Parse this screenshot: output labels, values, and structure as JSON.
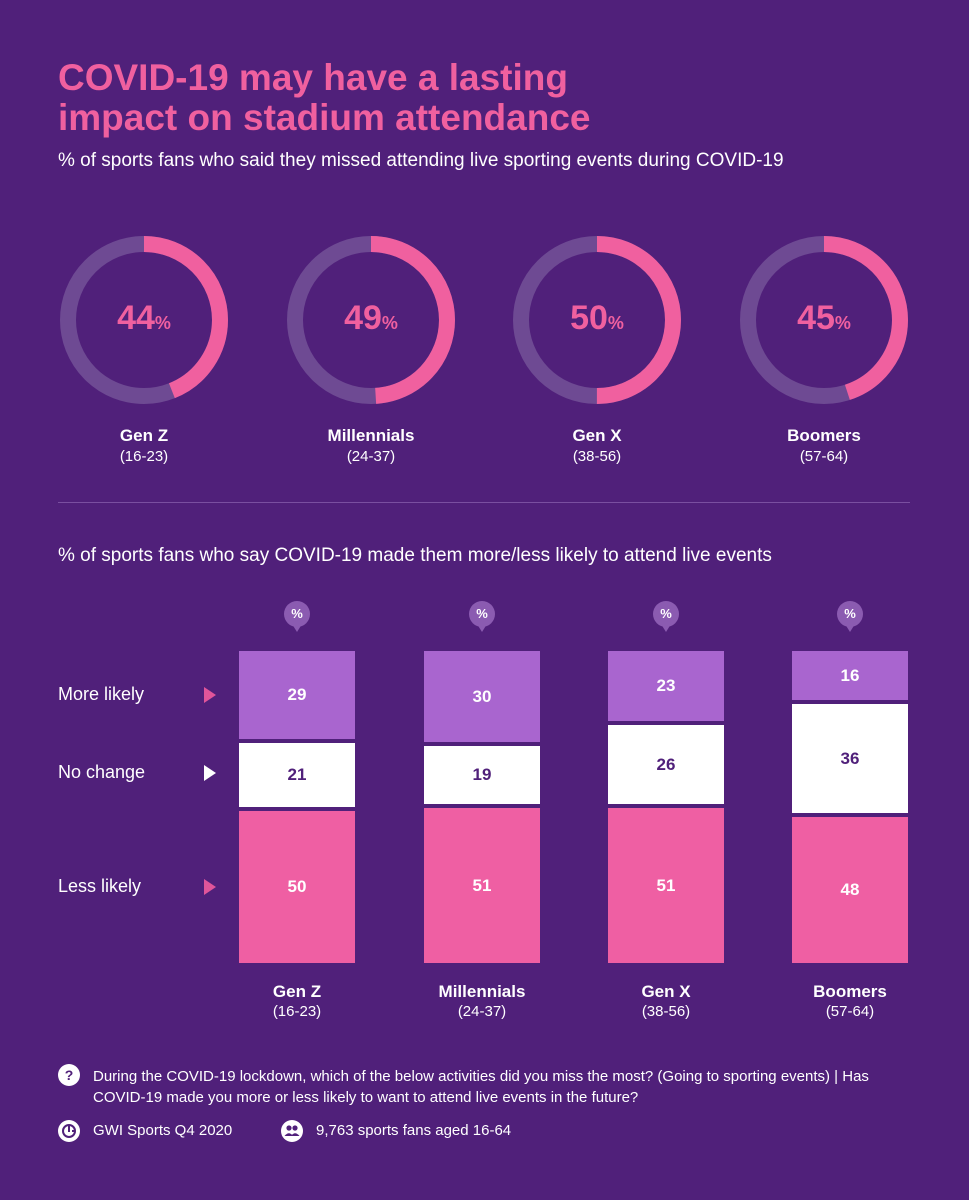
{
  "title": {
    "line1": "COVID-19 may have a lasting",
    "line2": "impact on stadium attendance"
  },
  "subtitle_missed": "% of sports fans who said they missed attending live sporting events during COVID-19",
  "subtitle_likely": "% of sports fans who say COVID-19 made them more/less likely to attend live events",
  "unit_symbol": "%",
  "colors": {
    "background": "#50207a",
    "accent_pink": "#f0609f",
    "more_likely": "#a965cf",
    "no_change": "#ffffff",
    "less_likely": "#ef5fa3",
    "ring_track": "#6e4a93"
  },
  "generations": [
    {
      "name": "Gen Z",
      "range": "(16-23)"
    },
    {
      "name": "Millennials",
      "range": "(24-37)"
    },
    {
      "name": "Gen X",
      "range": "(38-56)"
    },
    {
      "name": "Boomers",
      "range": "(57-64)"
    }
  ],
  "row_labels": {
    "more": "More likely",
    "none": "No change",
    "less": "Less likely"
  },
  "chart_data": [
    {
      "type": "pie",
      "subtype": "donut",
      "title": "% of sports fans who said they missed attending live sporting events during COVID-19",
      "categories": [
        "Gen Z",
        "Millennials",
        "Gen X",
        "Boomers"
      ],
      "values": [
        44,
        49,
        50,
        45
      ],
      "unit": "%"
    },
    {
      "type": "bar",
      "subtype": "stacked",
      "title": "% of sports fans who say COVID-19 made them more/less likely to attend live events",
      "categories": [
        "Gen Z",
        "Millennials",
        "Gen X",
        "Boomers"
      ],
      "series": [
        {
          "name": "More likely",
          "values": [
            29,
            30,
            23,
            16
          ]
        },
        {
          "name": "No change",
          "values": [
            21,
            19,
            26,
            36
          ]
        },
        {
          "name": "Less likely",
          "values": [
            50,
            51,
            51,
            48
          ]
        }
      ],
      "unit": "%"
    }
  ],
  "footer": {
    "question_icon": "?",
    "question": "During the COVID-19 lockdown, which of the below activities did you miss the most? (Going to sporting events) | Has COVID-19 made you more or less likely to want to attend live events in the future?",
    "source": "GWI Sports Q4 2020",
    "sample": "9,763 sports fans aged 16-64"
  }
}
